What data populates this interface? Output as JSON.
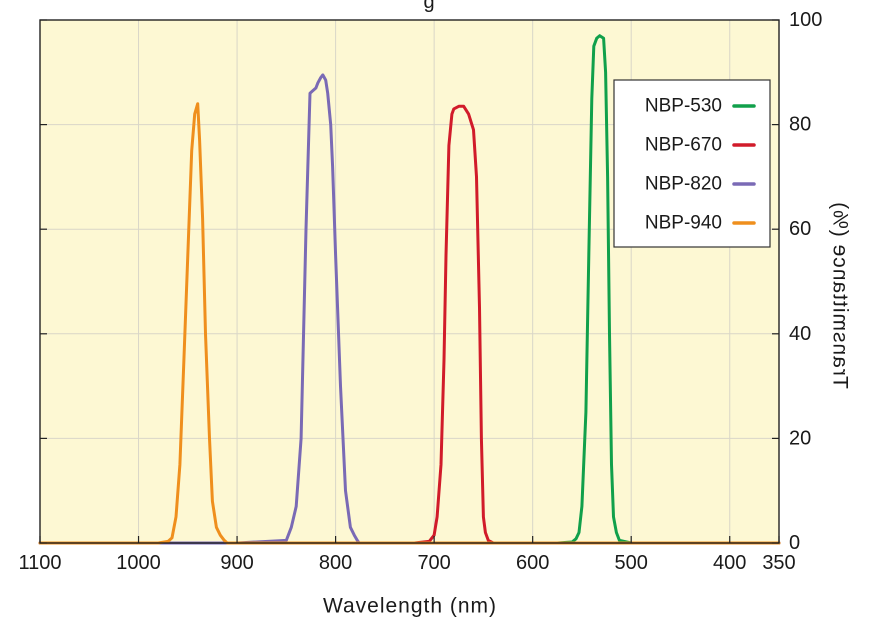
{
  "chart_data": {
    "type": "line",
    "title_fragment": "g",
    "xlabel": "Wavelength (nm)",
    "ylabel": "Transmittance (%)",
    "xlim": [
      350,
      1100
    ],
    "ylim": [
      0,
      100
    ],
    "x_ticks": [
      350,
      400,
      500,
      600,
      700,
      800,
      900,
      1000,
      1100
    ],
    "y_ticks": [
      0,
      20,
      40,
      60,
      80,
      100
    ],
    "grid": true,
    "legend_position": "top-right",
    "background_color": "#fdf8d3",
    "series": [
      {
        "name": "NBP-530",
        "color": "#11a04b",
        "x": [
          350,
          500,
          512,
          515,
          518,
          520,
          522,
          524,
          526,
          528,
          532,
          535,
          538,
          540,
          543,
          546,
          550,
          553,
          556,
          560,
          575,
          600,
          700,
          800,
          900,
          1000,
          1100
        ],
        "y": [
          0,
          0,
          0.5,
          2,
          5,
          15,
          40,
          70,
          90,
          96.5,
          97,
          96.5,
          95,
          85,
          55,
          25,
          7,
          2,
          0.8,
          0.2,
          0,
          0,
          0,
          0,
          0,
          0,
          0
        ]
      },
      {
        "name": "NBP-670",
        "color": "#d11b2a",
        "x": [
          350,
          500,
          600,
          640,
          645,
          648,
          650,
          652,
          654,
          657,
          660,
          665,
          670,
          675,
          680,
          682,
          685,
          688,
          690,
          693,
          697,
          700,
          705,
          720,
          800,
          900,
          1000,
          1100
        ],
        "y": [
          0,
          0,
          0,
          0,
          0.5,
          2,
          5,
          20,
          45,
          70,
          79,
          82,
          83.5,
          83.5,
          83,
          82,
          76,
          55,
          35,
          15,
          5,
          1.5,
          0.3,
          0,
          0,
          0,
          0,
          0
        ]
      },
      {
        "name": "NBP-820",
        "color": "#7a6ab5",
        "x": [
          350,
          600,
          700,
          776,
          778,
          781,
          785,
          790,
          795,
          800,
          803,
          805,
          808,
          810,
          813,
          815,
          818,
          820,
          823,
          826,
          830,
          835,
          840,
          845,
          850,
          900,
          1000,
          1100
        ],
        "y": [
          0,
          0,
          0,
          0,
          0.5,
          1.5,
          3,
          10,
          30,
          55,
          72,
          80,
          86,
          88.5,
          89.5,
          89,
          88,
          87,
          86.5,
          86,
          60,
          20,
          7,
          3,
          0.5,
          0,
          0,
          0
        ]
      },
      {
        "name": "NBP-940",
        "color": "#ef8f1d",
        "x": [
          350,
          700,
          900,
          910,
          913,
          917,
          921,
          925,
          928,
          932,
          935,
          938,
          940,
          943,
          946,
          950,
          954,
          958,
          962,
          966,
          970,
          980,
          1000,
          1100
        ],
        "y": [
          0,
          0,
          0,
          0,
          0.5,
          1.5,
          3,
          8,
          20,
          40,
          62,
          77,
          84,
          82,
          75,
          55,
          35,
          15,
          5,
          1,
          0.3,
          0,
          0,
          0
        ]
      }
    ]
  }
}
